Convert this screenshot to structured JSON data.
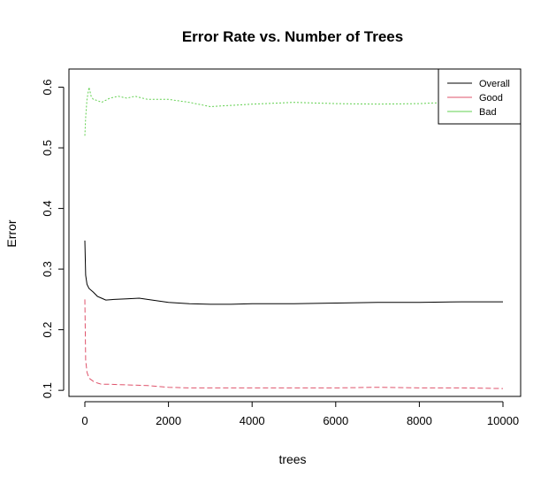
{
  "chart_data": {
    "type": "line",
    "title": "Error Rate vs. Number of Trees",
    "xlabel": "trees",
    "ylabel": "Error",
    "xlim": [
      0,
      10000
    ],
    "ylim": [
      0.09,
      0.63
    ],
    "x_ticks": [
      0,
      2000,
      4000,
      6000,
      8000,
      10000
    ],
    "y_ticks": [
      0.1,
      0.2,
      0.3,
      0.4,
      0.5,
      0.6
    ],
    "grid": false,
    "legend_position": "top-right",
    "series": [
      {
        "name": "Overall",
        "color": "#000000",
        "dash": "solid",
        "points": [
          [
            1,
            0.347
          ],
          [
            20,
            0.29
          ],
          [
            50,
            0.275
          ],
          [
            100,
            0.268
          ],
          [
            200,
            0.262
          ],
          [
            300,
            0.255
          ],
          [
            400,
            0.252
          ],
          [
            500,
            0.249
          ],
          [
            700,
            0.25
          ],
          [
            1000,
            0.251
          ],
          [
            1300,
            0.252
          ],
          [
            1500,
            0.25
          ],
          [
            2000,
            0.245
          ],
          [
            2500,
            0.243
          ],
          [
            3000,
            0.242
          ],
          [
            3500,
            0.242
          ],
          [
            4000,
            0.243
          ],
          [
            4500,
            0.243
          ],
          [
            5000,
            0.243
          ],
          [
            6000,
            0.244
          ],
          [
            7000,
            0.245
          ],
          [
            8000,
            0.245
          ],
          [
            9000,
            0.246
          ],
          [
            10000,
            0.246
          ]
        ]
      },
      {
        "name": "Good",
        "color": "#DF536B",
        "dash": "dashed",
        "points": [
          [
            1,
            0.25
          ],
          [
            20,
            0.15
          ],
          [
            50,
            0.13
          ],
          [
            100,
            0.12
          ],
          [
            200,
            0.115
          ],
          [
            300,
            0.112
          ],
          [
            400,
            0.11
          ],
          [
            600,
            0.11
          ],
          [
            1000,
            0.109
          ],
          [
            1500,
            0.108
          ],
          [
            2000,
            0.105
          ],
          [
            2500,
            0.104
          ],
          [
            3000,
            0.104
          ],
          [
            3500,
            0.104
          ],
          [
            4000,
            0.104
          ],
          [
            5000,
            0.104
          ],
          [
            6000,
            0.104
          ],
          [
            7000,
            0.105
          ],
          [
            8000,
            0.104
          ],
          [
            9000,
            0.104
          ],
          [
            10000,
            0.103
          ]
        ]
      },
      {
        "name": "Bad",
        "color": "#61D04F",
        "dash": "dotted",
        "points": [
          [
            1,
            0.52
          ],
          [
            20,
            0.55
          ],
          [
            50,
            0.58
          ],
          [
            100,
            0.6
          ],
          [
            150,
            0.585
          ],
          [
            200,
            0.58
          ],
          [
            300,
            0.578
          ],
          [
            400,
            0.575
          ],
          [
            600,
            0.582
          ],
          [
            800,
            0.585
          ],
          [
            1000,
            0.582
          ],
          [
            1200,
            0.585
          ],
          [
            1500,
            0.58
          ],
          [
            2000,
            0.58
          ],
          [
            2500,
            0.575
          ],
          [
            3000,
            0.568
          ],
          [
            3500,
            0.57
          ],
          [
            4000,
            0.572
          ],
          [
            5000,
            0.575
          ],
          [
            6000,
            0.573
          ],
          [
            7000,
            0.572
          ],
          [
            8000,
            0.573
          ],
          [
            9000,
            0.576
          ],
          [
            10000,
            0.576
          ]
        ]
      }
    ]
  }
}
